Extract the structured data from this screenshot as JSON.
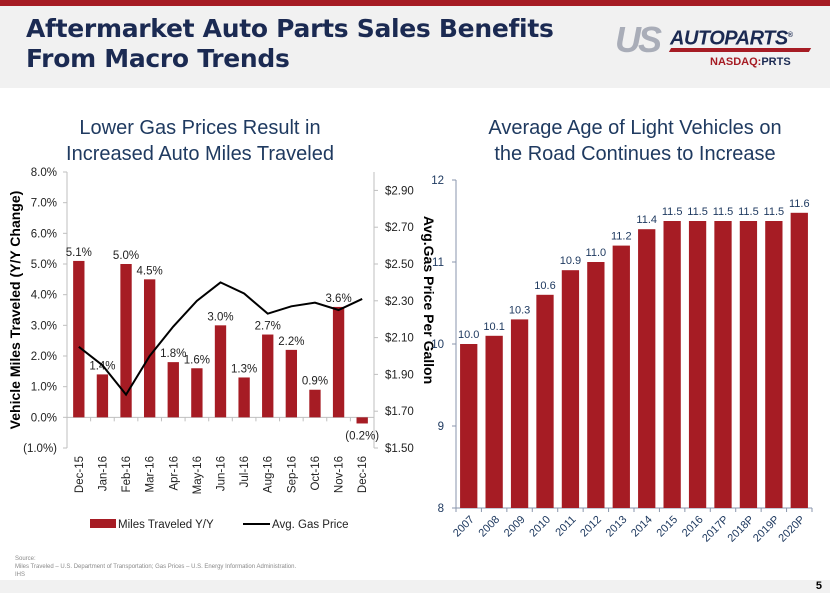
{
  "slide": {
    "title_line1": "Aftermarket Auto Parts Sales Benefits",
    "title_line2": "From Macro Trends",
    "page_number": "5"
  },
  "logo": {
    "us": "US",
    "autoparts": "AUTOPARTS",
    "registered": "®",
    "exchange": "NASDAQ:",
    "ticker": "PRTS"
  },
  "source": {
    "label": "Source:",
    "line1": "Miles Traveled – U.S. Department of Transportation; Gas Prices – U.S. Energy Information Administration.",
    "line2": "IHS"
  },
  "colors": {
    "bar": "#a61c24",
    "line": "#000000",
    "title": "#1b2a52",
    "chart_title": "#1f3a60",
    "axis_text_right_chart": "#1f3a60"
  },
  "chart_data": [
    {
      "type": "bar",
      "title_line1": "Lower Gas Prices Result in",
      "title_line2": "Increased Auto Miles Traveled",
      "categories": [
        "Dec-15",
        "Jan-16",
        "Feb-16",
        "Mar-16",
        "Apr-16",
        "May-16",
        "Jun-16",
        "Jul-16",
        "Aug-16",
        "Sep-16",
        "Oct-16",
        "Nov-16",
        "Dec-16"
      ],
      "series": [
        {
          "name": "Miles Traveled Y/Y",
          "type": "bar",
          "axis": "left",
          "values": [
            5.1,
            1.4,
            5.0,
            4.5,
            1.8,
            1.6,
            3.0,
            1.3,
            2.7,
            2.2,
            0.9,
            3.6,
            -0.2
          ],
          "labels": [
            "5.1%",
            "1.4%",
            "5.0%",
            "4.5%",
            "1.8%",
            "1.6%",
            "3.0%",
            "1.3%",
            "2.7%",
            "2.2%",
            "0.9%",
            "3.6%",
            "(0.2%)"
          ]
        },
        {
          "name": "Avg. Gas Price",
          "type": "line",
          "axis": "right",
          "values": [
            2.05,
            1.95,
            1.79,
            2.0,
            2.16,
            2.3,
            2.4,
            2.34,
            2.23,
            2.27,
            2.29,
            2.25,
            2.31
          ]
        }
      ],
      "ylabel": "Vehicle Miles Traveled (Y/Y Change)",
      "ylim": [
        -1.0,
        8.0
      ],
      "yticks": [
        "(1.0%)",
        "0.0%",
        "1.0%",
        "2.0%",
        "3.0%",
        "4.0%",
        "5.0%",
        "6.0%",
        "7.0%",
        "8.0%"
      ],
      "ytick_values": [
        -1,
        0,
        1,
        2,
        3,
        4,
        5,
        6,
        7,
        8
      ],
      "y2label": "Avg.Gas Price Per Gallon",
      "y2lim": [
        1.5,
        3.0
      ],
      "y2ticks": [
        "$1.50",
        "$1.70",
        "$1.90",
        "$2.10",
        "$2.30",
        "$2.50",
        "$2.70",
        "$2.90"
      ],
      "y2tick_values": [
        1.5,
        1.7,
        1.9,
        2.1,
        2.3,
        2.5,
        2.7,
        2.9
      ],
      "legend": [
        "Miles Traveled Y/Y",
        "Avg. Gas Price"
      ],
      "legend_position": "bottom",
      "grid": false
    },
    {
      "type": "bar",
      "title_line1": "Average Age of Light Vehicles on",
      "title_line2": "the Road Continues to Increase",
      "categories": [
        "2007",
        "2008",
        "2009",
        "2010",
        "2011",
        "2012",
        "2013",
        "2014",
        "2015",
        "2016",
        "2017P",
        "2018P",
        "2019P",
        "2020P"
      ],
      "values": [
        10.0,
        10.1,
        10.3,
        10.6,
        10.9,
        11.0,
        11.2,
        11.4,
        11.5,
        11.5,
        11.5,
        11.5,
        11.5,
        11.6
      ],
      "labels": [
        "10.0",
        "10.1",
        "10.3",
        "10.6",
        "10.9",
        "11.0",
        "11.2",
        "11.4",
        "11.5",
        "11.5",
        "11.5",
        "11.5",
        "11.5",
        "11.6"
      ],
      "ylim": [
        8,
        12
      ],
      "yticks": [
        "8",
        "9",
        "10",
        "11",
        "12"
      ],
      "ytick_values": [
        8,
        9,
        10,
        11,
        12
      ],
      "xlabel": "",
      "ylabel": "",
      "grid": false
    }
  ]
}
